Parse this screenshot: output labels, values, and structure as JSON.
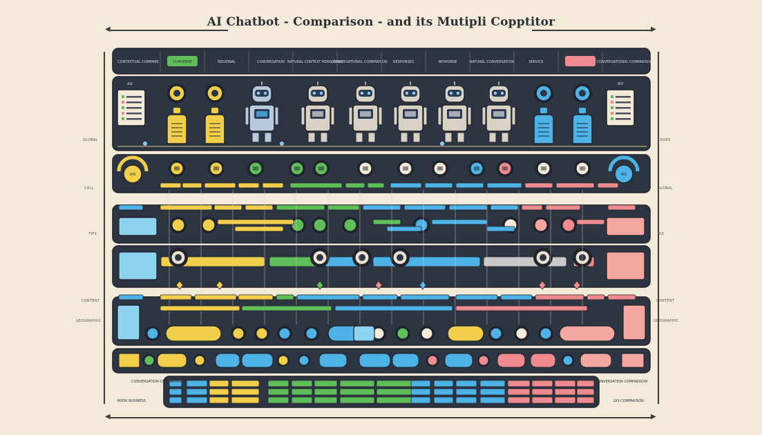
{
  "title": "AI Chatbot - Comparison - and its Mutipli Copptitor",
  "colors": {
    "board": "#2e3542",
    "board_dark": "#262c37",
    "cream": "#f3ead9",
    "yellow": "#f2cf4a",
    "green": "#5fbe5a",
    "blue": "#4db3e6",
    "pink": "#ef8b8f",
    "salmon": "#f3a7a0",
    "lightblue": "#8fd3f2",
    "gray": "#c8c8c8"
  },
  "header": {
    "cells": [
      {
        "label": "CONTEXTUAL COMPARE",
        "style": "text"
      },
      {
        "label": "CONVERSE",
        "style": "green"
      },
      {
        "label": "REGIONAL",
        "style": "text"
      },
      {
        "label": "CONVERSATION",
        "style": "text"
      },
      {
        "label": "NATURAL CONTEXT REASONING",
        "style": "text"
      },
      {
        "label": "CONVERSATIONAL COMPARISON",
        "style": "text"
      },
      {
        "label": "RESPONSES",
        "style": "text"
      },
      {
        "label": "RESPONSE",
        "style": "text"
      },
      {
        "label": "NATURAL CONVERSATION",
        "style": "text"
      },
      {
        "label": "SERVICE",
        "style": "text"
      },
      {
        "label": "",
        "style": "pink"
      },
      {
        "label": "CONVERSATIONAL COMPARISON",
        "style": "text"
      }
    ]
  },
  "row1": {
    "left_label": "AI2",
    "right_label": "BI3",
    "icons": [
      {
        "kind": "badge",
        "color": "yellow"
      },
      {
        "kind": "badge",
        "color": "yellow"
      },
      {
        "kind": "robot",
        "color": "blue"
      },
      {
        "kind": "robot",
        "color": "cream"
      },
      {
        "kind": "robot",
        "color": "cream"
      },
      {
        "kind": "robot",
        "color": "cream"
      },
      {
        "kind": "robot",
        "color": "cream"
      },
      {
        "kind": "robot",
        "color": "cream"
      },
      {
        "kind": "badge",
        "color": "blue"
      },
      {
        "kind": "badge",
        "color": "blue"
      }
    ]
  },
  "margin_left": [
    "GLOBAL",
    "CALL",
    "TIPS",
    "CONTENT",
    "GEOGRAPHIC"
  ],
  "margin_right": [
    "CROSS",
    "GLOBAL",
    "BIZ",
    "CONTENT",
    "GEOGRAPHIC"
  ],
  "gauge_left": "GIS",
  "gauge_right": "AIS",
  "footer": {
    "left": "BOOK  BUSINESS",
    "right": "GIS COMPARISON",
    "left_note": "CONVERSATION COMPARISON",
    "right_note": "CONVERSATION COMPARISON"
  }
}
